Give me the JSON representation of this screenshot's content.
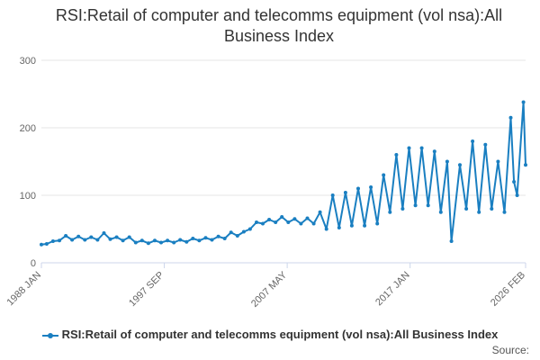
{
  "chart_data": {
    "type": "line",
    "title": "RSI:Retail of computer and telecomms equipment (vol nsa):All Business Index",
    "xlabel": "",
    "ylabel": "",
    "ylim": [
      0,
      300
    ],
    "yticks": [
      "0",
      "100",
      "200",
      "300"
    ],
    "xticks": [
      "1988 JAN",
      "1997 SEP",
      "2007 MAY",
      "2017 JAN",
      "2026 FEB"
    ],
    "grid": true,
    "legend_position": "bottom-center",
    "series": [
      {
        "name": "RSI:Retail of computer and telecomms equipment (vol nsa):All Business Index",
        "color": "#1a7fc1",
        "points": [
          [
            "1988-01",
            27
          ],
          [
            "1988-06",
            28
          ],
          [
            "1988-12",
            32
          ],
          [
            "1989-06",
            33
          ],
          [
            "1989-12",
            40
          ],
          [
            "1990-06",
            34
          ],
          [
            "1990-12",
            39
          ],
          [
            "1991-06",
            34
          ],
          [
            "1991-12",
            38
          ],
          [
            "1992-06",
            34
          ],
          [
            "1992-12",
            44
          ],
          [
            "1993-06",
            35
          ],
          [
            "1993-12",
            38
          ],
          [
            "1994-06",
            33
          ],
          [
            "1994-12",
            38
          ],
          [
            "1995-06",
            30
          ],
          [
            "1995-12",
            33
          ],
          [
            "1996-06",
            29
          ],
          [
            "1996-12",
            33
          ],
          [
            "1997-06",
            30
          ],
          [
            "1997-12",
            33
          ],
          [
            "1998-06",
            30
          ],
          [
            "1998-12",
            34
          ],
          [
            "1999-06",
            31
          ],
          [
            "1999-12",
            36
          ],
          [
            "2000-06",
            33
          ],
          [
            "2000-12",
            37
          ],
          [
            "2001-06",
            34
          ],
          [
            "2001-12",
            39
          ],
          [
            "2002-06",
            36
          ],
          [
            "2002-12",
            45
          ],
          [
            "2003-06",
            40
          ],
          [
            "2003-12",
            46
          ],
          [
            "2004-06",
            50
          ],
          [
            "2004-12",
            60
          ],
          [
            "2005-06",
            58
          ],
          [
            "2005-12",
            64
          ],
          [
            "2006-06",
            60
          ],
          [
            "2006-12",
            68
          ],
          [
            "2007-06",
            60
          ],
          [
            "2007-12",
            65
          ],
          [
            "2008-06",
            58
          ],
          [
            "2008-12",
            66
          ],
          [
            "2009-06",
            58
          ],
          [
            "2009-12",
            75
          ],
          [
            "2010-06",
            50
          ],
          [
            "2010-12",
            100
          ],
          [
            "2011-06",
            52
          ],
          [
            "2011-12",
            104
          ],
          [
            "2012-06",
            55
          ],
          [
            "2012-12",
            110
          ],
          [
            "2013-06",
            55
          ],
          [
            "2013-12",
            112
          ],
          [
            "2014-06",
            58
          ],
          [
            "2014-12",
            130
          ],
          [
            "2015-06",
            75
          ],
          [
            "2015-12",
            160
          ],
          [
            "2016-06",
            80
          ],
          [
            "2016-12",
            170
          ],
          [
            "2017-06",
            85
          ],
          [
            "2017-12",
            170
          ],
          [
            "2018-06",
            85
          ],
          [
            "2018-12",
            165
          ],
          [
            "2019-06",
            75
          ],
          [
            "2019-12",
            150
          ],
          [
            "2020-04",
            32
          ],
          [
            "2020-12",
            145
          ],
          [
            "2021-06",
            80
          ],
          [
            "2021-12",
            180
          ],
          [
            "2022-06",
            75
          ],
          [
            "2022-12",
            175
          ],
          [
            "2023-06",
            80
          ],
          [
            "2023-12",
            150
          ],
          [
            "2024-06",
            75
          ],
          [
            "2024-12",
            215
          ],
          [
            "2025-03",
            120
          ],
          [
            "2025-06",
            100
          ],
          [
            "2025-12",
            238
          ],
          [
            "2026-02",
            145
          ]
        ]
      }
    ]
  },
  "footer": {
    "source_label": "Source:"
  },
  "colors": {
    "series": "#1a7fc1",
    "grid": "#e6e6e6",
    "axis": "#ccd6eb"
  }
}
